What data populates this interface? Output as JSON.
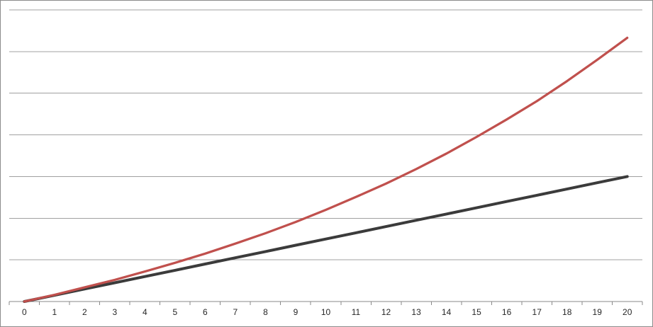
{
  "chart_data": {
    "type": "line",
    "title": "",
    "xlabel": "",
    "ylabel": "",
    "legend_position": "none",
    "grid": "horizontal",
    "y_unit": "gridline-intervals (no y-axis labels visible)",
    "ylim": [
      0,
      7.24
    ],
    "gridlines_y": [
      1,
      2,
      3,
      4,
      5,
      6,
      7
    ],
    "x": [
      0,
      1,
      2,
      3,
      4,
      5,
      6,
      7,
      8,
      9,
      10,
      11,
      12,
      13,
      14,
      15,
      16,
      17,
      18,
      19,
      20
    ],
    "x_tick_labels": [
      "0",
      "1",
      "2",
      "3",
      "4",
      "5",
      "6",
      "7",
      "8",
      "9",
      "10",
      "11",
      "12",
      "13",
      "14",
      "15",
      "16",
      "17",
      "18",
      "19",
      "20"
    ],
    "series": [
      {
        "name": "linear-black-line",
        "color": "#3b3b3b",
        "stroke_width": 4,
        "values": [
          0,
          0.15,
          0.3,
          0.45,
          0.6,
          0.75,
          0.9,
          1.05,
          1.2,
          1.35,
          1.5,
          1.65,
          1.8,
          1.95,
          2.1,
          2.25,
          2.4,
          2.55,
          2.7,
          2.85,
          3.0
        ]
      },
      {
        "name": "compound-red-curve",
        "color": "#c0504d",
        "stroke_width": 3.25,
        "values": [
          0,
          0.16,
          0.34,
          0.52,
          0.72,
          0.93,
          1.15,
          1.39,
          1.64,
          1.91,
          2.2,
          2.51,
          2.83,
          3.18,
          3.55,
          3.95,
          4.37,
          4.81,
          5.29,
          5.8,
          6.33
        ]
      }
    ],
    "colors": {
      "background": "#ffffff",
      "chart_border": "#8c8c8c",
      "gridline": "#a0a0a0",
      "axis_line": "#898989",
      "tick_label": "#262626"
    }
  }
}
